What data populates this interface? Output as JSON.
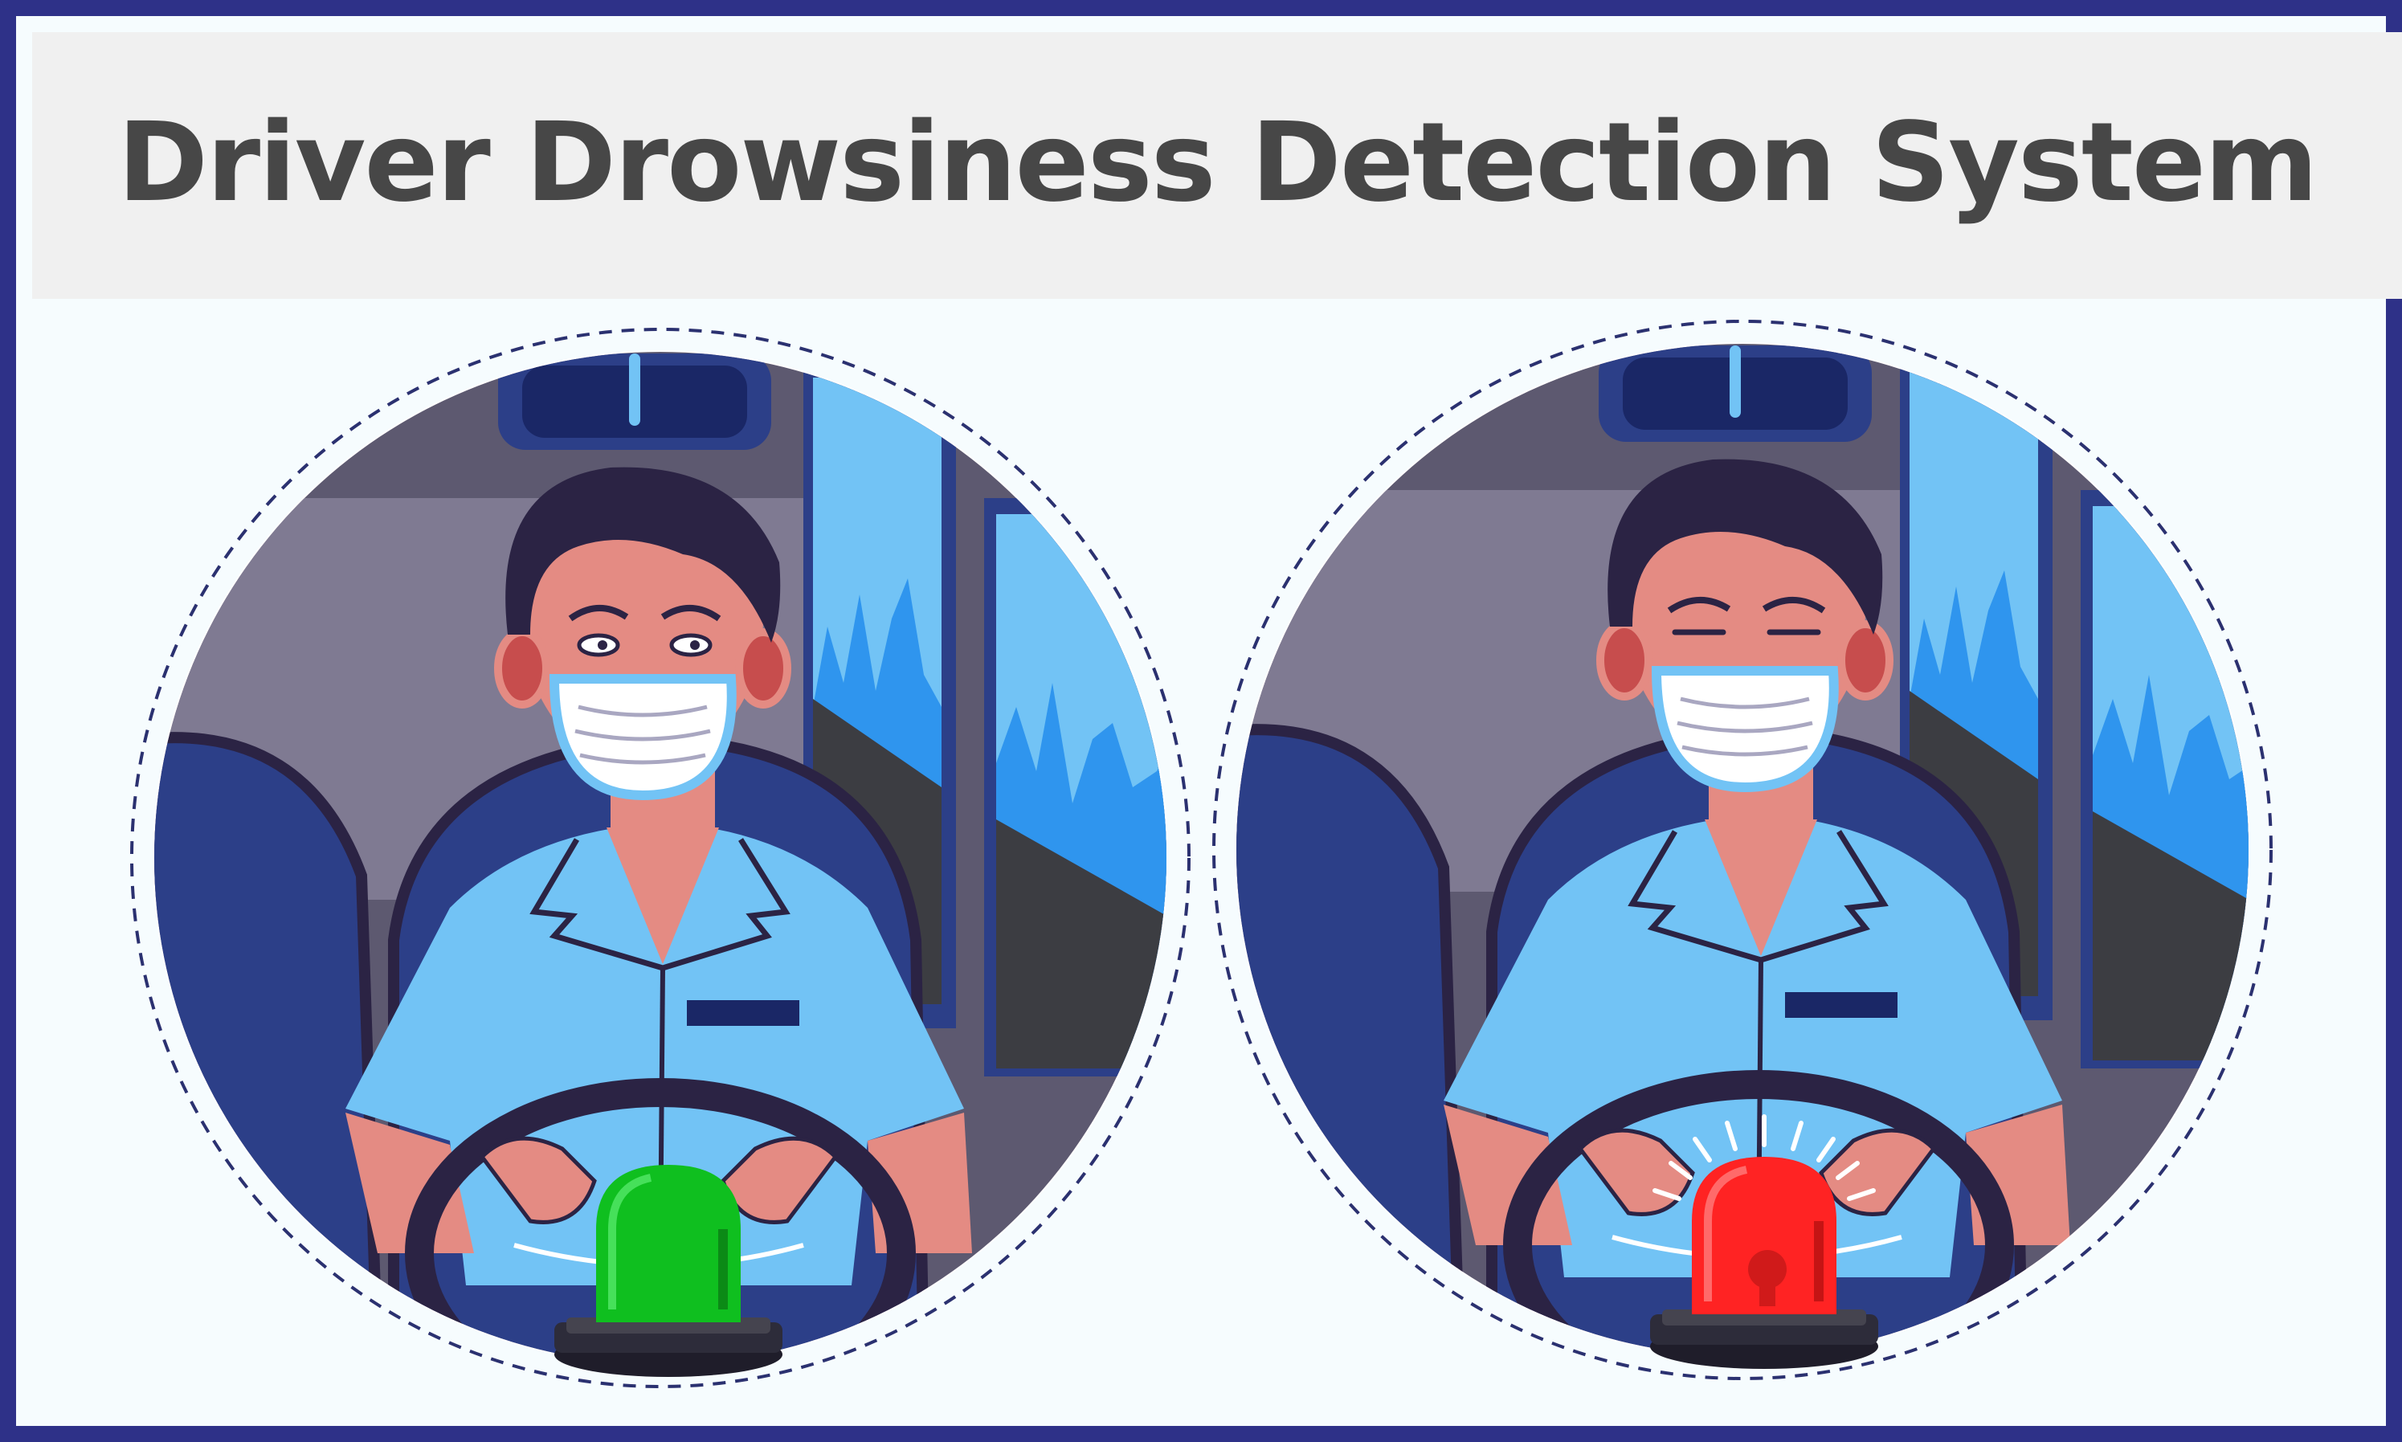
{
  "header": {
    "title": "Driver Drowsiness Detection System"
  },
  "colors": {
    "border": "#2e3188",
    "header_bg": "#f0f0f0",
    "title": "#474747",
    "panel_bg": "#f6fcfe",
    "uniform": "#72c3f5",
    "seat": "#2c3f88",
    "skin": "#e48b83",
    "hair": "#2b2344",
    "alert_ok": "#0fbf1f",
    "alert_danger": "#ff2323"
  },
  "panels": [
    {
      "state": "awake",
      "eyes": "open",
      "siren": "green-siren-light"
    },
    {
      "state": "drowsy",
      "eyes": "closed",
      "siren": "red-siren-light"
    }
  ]
}
